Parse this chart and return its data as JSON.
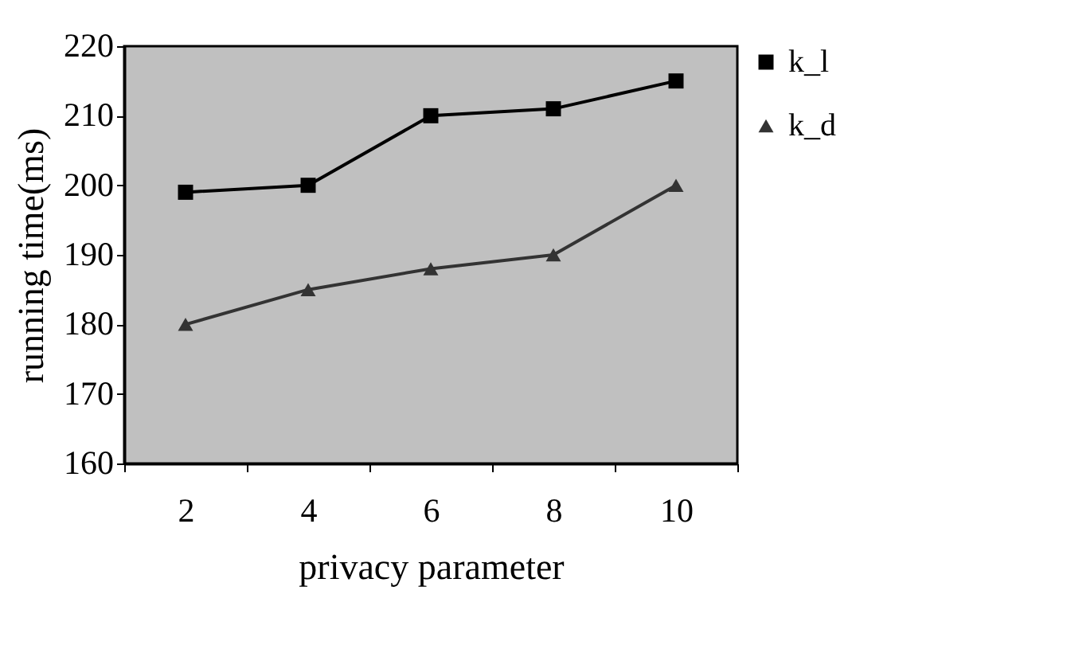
{
  "chart_data": {
    "type": "line",
    "xlabel": "privacy parameter",
    "ylabel": "running time(ms)",
    "categories": [
      "2",
      "4",
      "6",
      "8",
      "10"
    ],
    "ylim": [
      160,
      220
    ],
    "yticks": [
      160,
      170,
      180,
      190,
      200,
      210,
      220
    ],
    "grid": false,
    "legend": "right",
    "series": [
      {
        "name": "k_l",
        "color": "#000000",
        "marker": "square",
        "values": [
          199,
          200,
          210,
          211,
          215
        ]
      },
      {
        "name": "k_d",
        "color": "#333333",
        "marker": "triangle",
        "values": [
          180,
          185,
          188,
          190,
          200
        ]
      }
    ]
  }
}
